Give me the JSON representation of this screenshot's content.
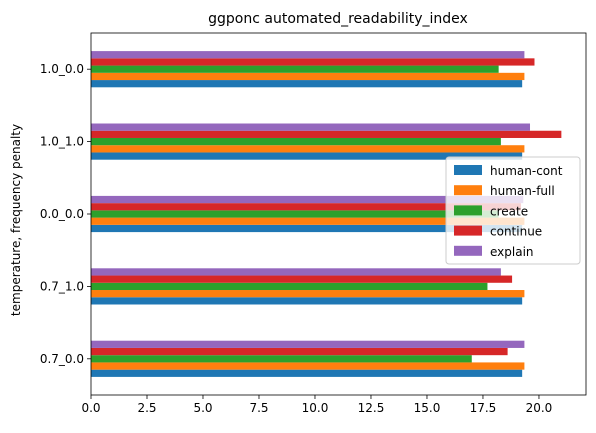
{
  "chart_data": {
    "type": "bar",
    "orientation": "horizontal",
    "title": "ggponc automated_readability_index",
    "xlabel": "",
    "ylabel": "temperature, frequency penalty",
    "xlim": [
      0,
      22.1
    ],
    "x_ticks": [
      "0.0",
      "2.5",
      "5.0",
      "7.5",
      "10.0",
      "12.5",
      "15.0",
      "17.5",
      "20.0"
    ],
    "categories": [
      "0.7_0.0",
      "0.7_1.0",
      "0.0_0.0",
      "1.0_1.0",
      "1.0_0.0"
    ],
    "series": [
      {
        "name": "human-cont",
        "color": "#1f77b4",
        "values": [
          19.25,
          19.25,
          19.25,
          19.25,
          19.25
        ]
      },
      {
        "name": "human-full",
        "color": "#ff7f0e",
        "values": [
          19.35,
          19.35,
          19.35,
          19.35,
          19.35
        ]
      },
      {
        "name": "create",
        "color": "#2ca02c",
        "values": [
          17.0,
          17.7,
          18.2,
          18.3,
          18.2
        ]
      },
      {
        "name": "continue",
        "color": "#d62728",
        "values": [
          18.6,
          18.8,
          19.2,
          21.0,
          19.8
        ]
      },
      {
        "name": "explain",
        "color": "#9467bd",
        "values": [
          19.35,
          18.3,
          19.3,
          19.6,
          19.35
        ]
      }
    ],
    "legend_position": "center-right",
    "grid": false
  }
}
